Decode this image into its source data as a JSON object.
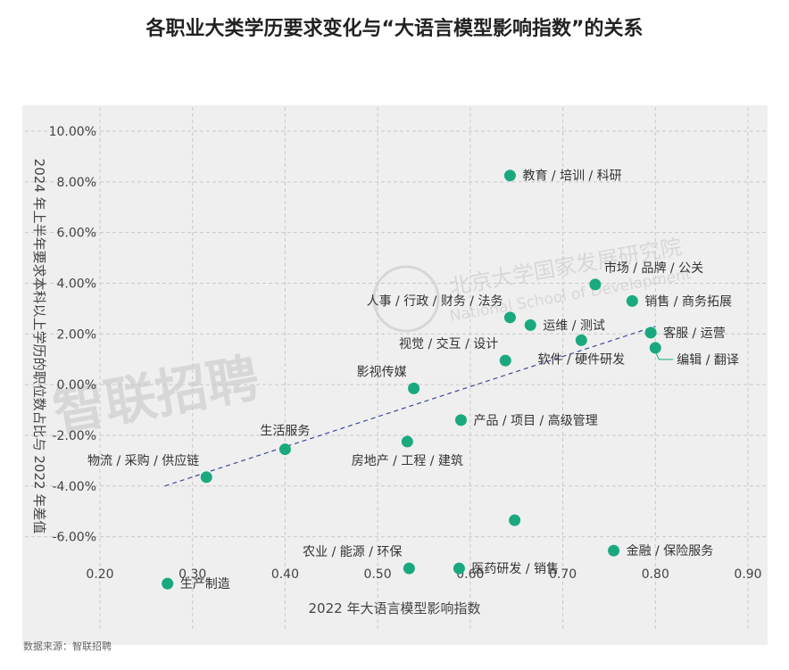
{
  "page": {
    "title": "各职业大类学历要求变化与“大语言模型影响指数”的关系",
    "source": "数据来源：智联招聘",
    "watermark_main": "智联招聘",
    "watermark_school_cn": "北京大学国家发展研究院",
    "watermark_school_en": "National School of Development"
  },
  "colors": {
    "point": "#1aa97f",
    "trend": "#3b4a9a",
    "grid": "#c9c9c9",
    "plot_bg": "#efefef",
    "axis_text": "#444444"
  },
  "chart_data": {
    "type": "scatter",
    "xlabel": "2022 年大语言模型影响指数",
    "ylabel": "2024 年上半年要求本科以上学历的职位数占比与 2022 年差值",
    "xlim": [
      0.2,
      0.9
    ],
    "ylim": [
      -0.07,
      0.1
    ],
    "xticks": [
      0.2,
      0.3,
      0.4,
      0.5,
      0.6,
      0.7,
      0.8,
      0.9
    ],
    "xtick_labels": [
      "0.20",
      "0.30",
      "0.40",
      "0.50",
      "0.60",
      "0.70",
      "0.80",
      "0.90"
    ],
    "yticks": [
      0.1,
      0.08,
      0.06,
      0.04,
      0.02,
      0.0,
      -0.02,
      -0.04,
      -0.06
    ],
    "ytick_labels": [
      "10.00%",
      "8.00%",
      "6.00%",
      "4.00%",
      "2.00%",
      "0.00%",
      "-2.00%",
      "-4.00%",
      "-6.00%"
    ],
    "grid": true,
    "trendline": {
      "x": [
        0.27,
        0.8
      ],
      "y": [
        -0.04,
        0.023
      ]
    },
    "points": [
      {
        "label": "教育 / 培训 / 科研",
        "x": 0.643,
        "y": 0.0825,
        "label_pos": "right"
      },
      {
        "label": "市场 / 品牌 / 公关",
        "x": 0.735,
        "y": 0.0395,
        "label_pos": "top-right"
      },
      {
        "label": "销售 / 商务拓展",
        "x": 0.775,
        "y": 0.033,
        "label_pos": "right"
      },
      {
        "label": "人事 / 行政 / 财务 / 法务",
        "x": 0.643,
        "y": 0.0265,
        "label_pos": "top-left"
      },
      {
        "label": "运维 / 测试",
        "x": 0.665,
        "y": 0.0235,
        "label_pos": "right"
      },
      {
        "label": "客服 / 运营",
        "x": 0.795,
        "y": 0.0205,
        "label_pos": "right"
      },
      {
        "label": "软件 / 硬件研发",
        "x": 0.72,
        "y": 0.0175,
        "label_pos": "bottom"
      },
      {
        "label": "编辑 / 翻译",
        "x": 0.8,
        "y": 0.0145,
        "label_pos": "bottom-right"
      },
      {
        "label": "视觉 / 交互 / 设计",
        "x": 0.638,
        "y": 0.0095,
        "label_pos": "top-left"
      },
      {
        "label": "影视传媒",
        "x": 0.539,
        "y": -0.0015,
        "label_pos": "top-left"
      },
      {
        "label": "产品 / 项目 / 高级管理",
        "x": 0.59,
        "y": -0.014,
        "label_pos": "right"
      },
      {
        "label": "生活服务",
        "x": 0.4,
        "y": -0.0255,
        "label_pos": "top"
      },
      {
        "label": "房地产 / 工程 / 建筑",
        "x": 0.532,
        "y": -0.0225,
        "label_pos": "bottom"
      },
      {
        "label": "物流 / 采购 / 供应链",
        "x": 0.315,
        "y": -0.0365,
        "label_pos": "top-left"
      },
      {
        "label": "",
        "x": 0.648,
        "y": -0.0535,
        "label_pos": "none"
      },
      {
        "label": "农业 / 能源 / 环保",
        "x": 0.534,
        "y": -0.0725,
        "label_pos": "top-left"
      },
      {
        "label": "医药研发 / 销售",
        "x": 0.588,
        "y": -0.0725,
        "label_pos": "right"
      },
      {
        "label": "金融 / 保险服务",
        "x": 0.755,
        "y": -0.0655,
        "label_pos": "right"
      },
      {
        "label": "生产制造",
        "x": 0.273,
        "y": -0.0785,
        "label_pos": "right"
      }
    ]
  }
}
